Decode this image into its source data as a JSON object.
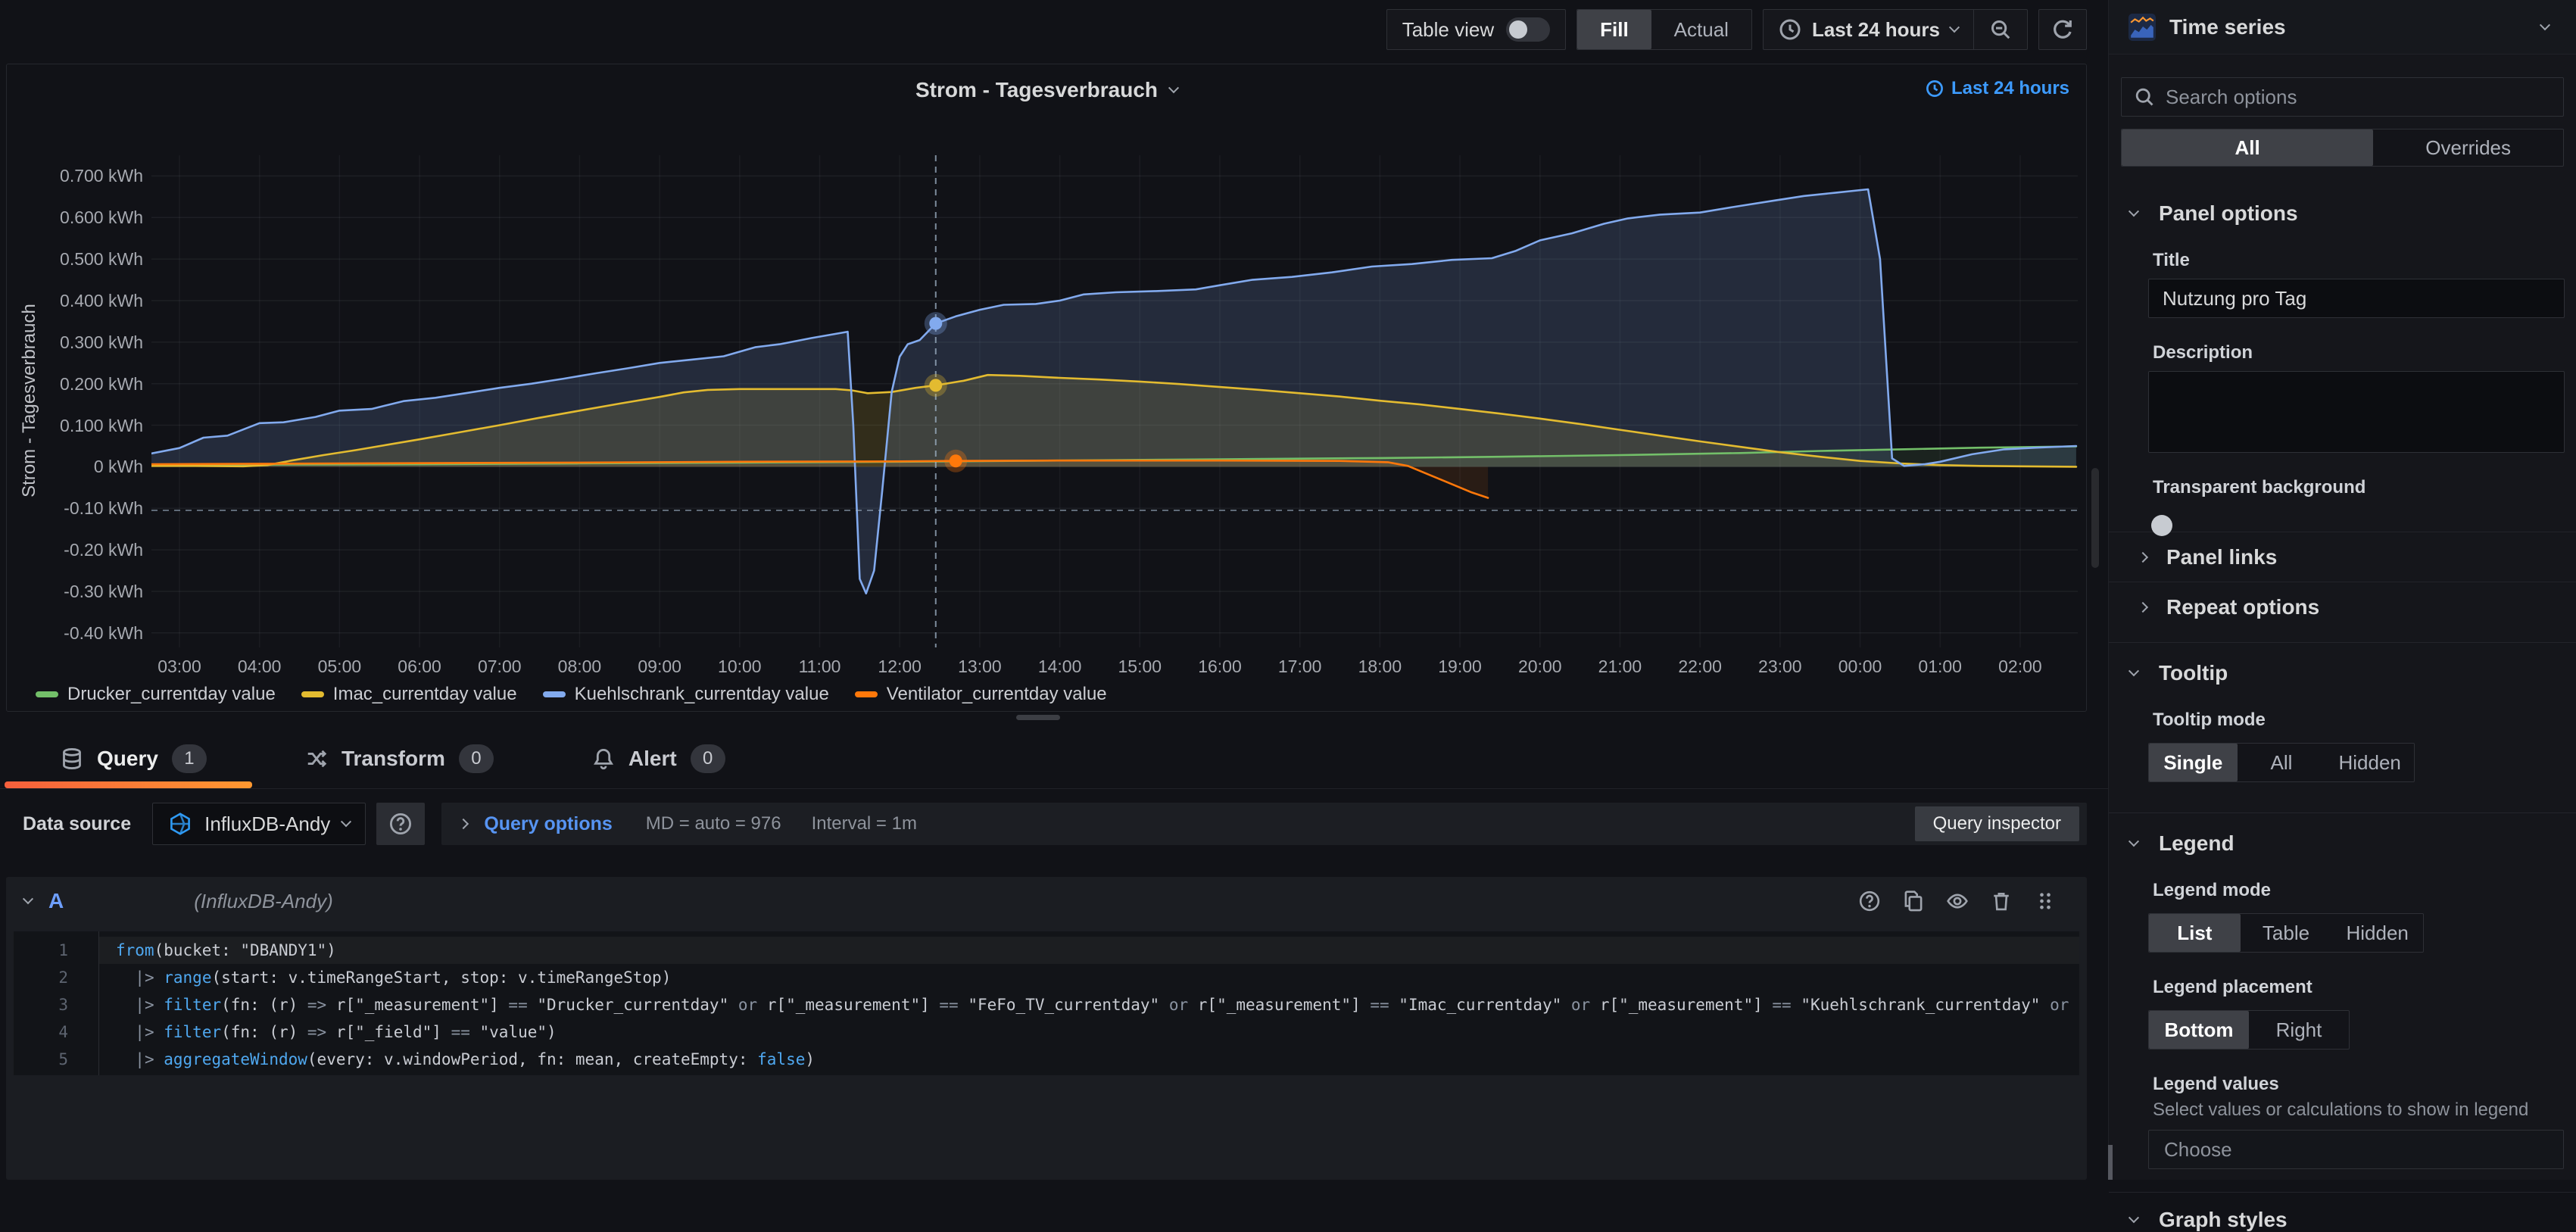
{
  "toolbar": {
    "table_view_label": "Table view",
    "view_options": [
      "Fill",
      "Actual"
    ],
    "active_view": "Fill",
    "time_range": "Last 24 hours",
    "icons": [
      "clock-icon",
      "chevron-down-icon",
      "zoom-out-icon",
      "refresh-icon"
    ]
  },
  "panel": {
    "title": "Strom - Tagesverbrauch",
    "time_indicator": "Last 24 hours"
  },
  "chart_data": {
    "type": "area",
    "title": "Strom - Tagesverbrauch",
    "ylabel": "Strom - Tagesverbrauch",
    "unit": "kWh",
    "grid": true,
    "legend_position": "bottom",
    "x_domain": [
      2.65,
      26.72
    ],
    "y_domain": [
      -0.435,
      0.75
    ],
    "y_ticks": [
      {
        "v": 0.7,
        "label": "0.700 kWh"
      },
      {
        "v": 0.6,
        "label": "0.600 kWh"
      },
      {
        "v": 0.5,
        "label": "0.500 kWh"
      },
      {
        "v": 0.4,
        "label": "0.400 kWh"
      },
      {
        "v": 0.3,
        "label": "0.300 kWh"
      },
      {
        "v": 0.2,
        "label": "0.200 kWh"
      },
      {
        "v": 0.1,
        "label": "0.100 kWh"
      },
      {
        "v": 0,
        "label": "0 kWh"
      },
      {
        "v": -0.1,
        "label": "-0.10 kWh"
      },
      {
        "v": -0.2,
        "label": "-0.20 kWh"
      },
      {
        "v": -0.3,
        "label": "-0.30 kWh"
      },
      {
        "v": -0.4,
        "label": "-0.40 kWh"
      }
    ],
    "x_ticks": [
      {
        "h": 3,
        "label": "03:00"
      },
      {
        "h": 4,
        "label": "04:00"
      },
      {
        "h": 5,
        "label": "05:00"
      },
      {
        "h": 6,
        "label": "06:00"
      },
      {
        "h": 7,
        "label": "07:00"
      },
      {
        "h": 8,
        "label": "08:00"
      },
      {
        "h": 9,
        "label": "09:00"
      },
      {
        "h": 10,
        "label": "10:00"
      },
      {
        "h": 11,
        "label": "11:00"
      },
      {
        "h": 12,
        "label": "12:00"
      },
      {
        "h": 13,
        "label": "13:00"
      },
      {
        "h": 14,
        "label": "14:00"
      },
      {
        "h": 15,
        "label": "15:00"
      },
      {
        "h": 16,
        "label": "16:00"
      },
      {
        "h": 17,
        "label": "17:00"
      },
      {
        "h": 18,
        "label": "18:00"
      },
      {
        "h": 19,
        "label": "19:00"
      },
      {
        "h": 20,
        "label": "20:00"
      },
      {
        "h": 21,
        "label": "21:00"
      },
      {
        "h": 22,
        "label": "22:00"
      },
      {
        "h": 23,
        "label": "23:00"
      },
      {
        "h": 24,
        "label": "00:00"
      },
      {
        "h": 25,
        "label": "01:00"
      },
      {
        "h": 26,
        "label": "02:00"
      }
    ],
    "series": [
      {
        "name": "Drucker_currentday value",
        "color": "#73bf69",
        "fill_opacity": 0.1,
        "points": [
          [
            2.65,
            0.004
          ],
          [
            4,
            0.005
          ],
          [
            6,
            0.006
          ],
          [
            8,
            0.008
          ],
          [
            10,
            0.01
          ],
          [
            12,
            0.012
          ],
          [
            14,
            0.015
          ],
          [
            16,
            0.018
          ],
          [
            18,
            0.021
          ],
          [
            19.5,
            0.024
          ],
          [
            21,
            0.028
          ],
          [
            22.5,
            0.033
          ],
          [
            23.5,
            0.038
          ],
          [
            24.5,
            0.042
          ],
          [
            25.5,
            0.046
          ],
          [
            26.7,
            0.049
          ]
        ]
      },
      {
        "name": "Imac_currentday value",
        "color": "#e3bb30",
        "fill_opacity": 0.16,
        "points": [
          [
            2.65,
            0.002
          ],
          [
            3.2,
            0.002
          ],
          [
            3.8,
            0.001
          ],
          [
            4.1,
            0.004
          ],
          [
            4.4,
            0.015
          ],
          [
            4.8,
            0.028
          ],
          [
            5.2,
            0.04
          ],
          [
            5.6,
            0.053
          ],
          [
            6,
            0.066
          ],
          [
            6.5,
            0.083
          ],
          [
            7,
            0.1
          ],
          [
            7.5,
            0.118
          ],
          [
            8,
            0.135
          ],
          [
            8.5,
            0.152
          ],
          [
            9,
            0.168
          ],
          [
            9.3,
            0.179
          ],
          [
            9.6,
            0.185
          ],
          [
            10,
            0.187
          ],
          [
            10.6,
            0.187
          ],
          [
            11.2,
            0.187
          ],
          [
            11.4,
            0.184
          ],
          [
            11.6,
            0.177
          ],
          [
            11.9,
            0.18
          ],
          [
            12.2,
            0.19
          ],
          [
            12.45,
            0.196
          ],
          [
            12.8,
            0.207
          ],
          [
            13.1,
            0.221
          ],
          [
            13.5,
            0.219
          ],
          [
            14,
            0.214
          ],
          [
            14.5,
            0.21
          ],
          [
            15,
            0.205
          ],
          [
            15.5,
            0.199
          ],
          [
            16,
            0.192
          ],
          [
            16.5,
            0.185
          ],
          [
            17,
            0.177
          ],
          [
            17.5,
            0.169
          ],
          [
            18,
            0.159
          ],
          [
            18.5,
            0.15
          ],
          [
            19,
            0.139
          ],
          [
            19.5,
            0.128
          ],
          [
            20,
            0.116
          ],
          [
            20.5,
            0.103
          ],
          [
            21,
            0.089
          ],
          [
            21.5,
            0.075
          ],
          [
            22,
            0.061
          ],
          [
            22.5,
            0.048
          ],
          [
            23,
            0.035
          ],
          [
            23.5,
            0.024
          ],
          [
            24,
            0.014
          ],
          [
            24.5,
            0.008
          ],
          [
            25,
            0.004
          ],
          [
            25.5,
            0.002
          ],
          [
            26,
            0.001
          ],
          [
            26.7,
            0.0
          ]
        ]
      },
      {
        "name": "Kuehlschrank_currentday value",
        "color": "#82aaee",
        "fill_opacity": 0.17,
        "points": [
          [
            2.65,
            0.032
          ],
          [
            3,
            0.045
          ],
          [
            3.3,
            0.07
          ],
          [
            3.6,
            0.075
          ],
          [
            4,
            0.105
          ],
          [
            4.3,
            0.107
          ],
          [
            4.7,
            0.12
          ],
          [
            5,
            0.135
          ],
          [
            5.4,
            0.139
          ],
          [
            5.8,
            0.158
          ],
          [
            6.2,
            0.166
          ],
          [
            6.6,
            0.178
          ],
          [
            7,
            0.19
          ],
          [
            7.4,
            0.2
          ],
          [
            7.8,
            0.212
          ],
          [
            8.2,
            0.225
          ],
          [
            8.6,
            0.237
          ],
          [
            9,
            0.25
          ],
          [
            9.4,
            0.258
          ],
          [
            9.8,
            0.266
          ],
          [
            10.2,
            0.288
          ],
          [
            10.5,
            0.295
          ],
          [
            10.9,
            0.31
          ],
          [
            11.2,
            0.32
          ],
          [
            11.35,
            0.325
          ],
          [
            11.42,
            0.1
          ],
          [
            11.5,
            -0.27
          ],
          [
            11.58,
            -0.305
          ],
          [
            11.68,
            -0.25
          ],
          [
            11.78,
            -0.06
          ],
          [
            11.9,
            0.18
          ],
          [
            12,
            0.265
          ],
          [
            12.1,
            0.295
          ],
          [
            12.25,
            0.305
          ],
          [
            12.45,
            0.345
          ],
          [
            12.7,
            0.362
          ],
          [
            13,
            0.378
          ],
          [
            13.3,
            0.39
          ],
          [
            13.7,
            0.392
          ],
          [
            14,
            0.4
          ],
          [
            14.3,
            0.415
          ],
          [
            14.7,
            0.42
          ],
          [
            15.2,
            0.423
          ],
          [
            15.7,
            0.427
          ],
          [
            16,
            0.437
          ],
          [
            16.4,
            0.45
          ],
          [
            16.9,
            0.457
          ],
          [
            17.4,
            0.468
          ],
          [
            17.9,
            0.482
          ],
          [
            18.4,
            0.488
          ],
          [
            18.9,
            0.498
          ],
          [
            19.4,
            0.502
          ],
          [
            19.7,
            0.52
          ],
          [
            20,
            0.545
          ],
          [
            20.4,
            0.562
          ],
          [
            20.8,
            0.585
          ],
          [
            21.1,
            0.598
          ],
          [
            21.5,
            0.607
          ],
          [
            22,
            0.612
          ],
          [
            22.4,
            0.625
          ],
          [
            22.9,
            0.64
          ],
          [
            23.3,
            0.652
          ],
          [
            23.7,
            0.66
          ],
          [
            24.1,
            0.668
          ],
          [
            24.25,
            0.5
          ],
          [
            24.4,
            0.02
          ],
          [
            24.55,
            0.002
          ],
          [
            24.8,
            0.006
          ],
          [
            25,
            0.012
          ],
          [
            25.4,
            0.03
          ],
          [
            25.8,
            0.042
          ],
          [
            26.2,
            0.046
          ],
          [
            26.7,
            0.05
          ]
        ]
      },
      {
        "name": "Ventilator_currentday value",
        "color": "#ff780a",
        "fill_opacity": 0.1,
        "points": [
          [
            2.65,
            0.006
          ],
          [
            5,
            0.008
          ],
          [
            8,
            0.01
          ],
          [
            10,
            0.012
          ],
          [
            12,
            0.013
          ],
          [
            12.7,
            0.014
          ],
          [
            14,
            0.015
          ],
          [
            16,
            0.015
          ],
          [
            17.5,
            0.014
          ],
          [
            18.1,
            0.011
          ],
          [
            18.35,
            0.002
          ],
          [
            18.6,
            -0.018
          ],
          [
            18.9,
            -0.042
          ],
          [
            19.15,
            -0.062
          ],
          [
            19.35,
            -0.075
          ]
        ]
      }
    ],
    "crosshair": {
      "x": 12.45,
      "y": -0.105
    },
    "hover_points": [
      {
        "series": 2,
        "x": 12.45,
        "y": 0.345
      },
      {
        "series": 1,
        "x": 12.45,
        "y": 0.196
      },
      {
        "series": 3,
        "x": 12.7,
        "y": 0.014
      }
    ]
  },
  "tabs": [
    {
      "label": "Query",
      "count": "1",
      "icon": "database-icon",
      "active": true
    },
    {
      "label": "Transform",
      "count": "0",
      "icon": "shuffle-icon",
      "active": false
    },
    {
      "label": "Alert",
      "count": "0",
      "icon": "bell-icon",
      "active": false
    }
  ],
  "datasource_row": {
    "label": "Data source",
    "datasource_name": "InfluxDB-Andy",
    "datasource_icon": "influxdb-logo-icon",
    "query_options_label": "Query options",
    "stats": "MD = auto = 976",
    "interval": "Interval = 1m",
    "inspector_label": "Query inspector"
  },
  "query": {
    "ref_id": "A",
    "datasource_hint": "(InfluxDB-Andy)",
    "action_icons": [
      "help-icon",
      "duplicate-icon",
      "hide-icon",
      "delete-icon",
      "drag-handle-icon"
    ],
    "code_lines": [
      "from(bucket: \"DBANDY1\")",
      "  |> range(start: v.timeRangeStart, stop: v.timeRangeStop)",
      "  |> filter(fn: (r) => r[\"_measurement\"] == \"Drucker_currentday\" or r[\"_measurement\"] == \"FeFo_TV_currentday\" or r[\"_measurement\"] == \"Imac_currentday\" or r[\"_measurement\"] == \"Kuehlschrank_currentday\" or r[\"_m",
      "  |> filter(fn: (r) => r[\"_field\"] == \"value\")",
      "  |> aggregateWindow(every: v.windowPeriod, fn: mean, createEmpty: false)"
    ]
  },
  "sidebar": {
    "viz_name": "Time series",
    "search_placeholder": "Search options",
    "filter_tabs": [
      "All",
      "Overrides"
    ],
    "active_filter_tab": "All",
    "panel_options": {
      "header": "Panel options",
      "title_label": "Title",
      "title_value": "Nutzung pro Tag",
      "description_label": "Description",
      "description_value": "",
      "transparent_label": "Transparent background"
    },
    "collapsed_sections": [
      "Panel links",
      "Repeat options"
    ],
    "tooltip": {
      "header": "Tooltip",
      "mode_label": "Tooltip mode",
      "modes": [
        "Single",
        "All",
        "Hidden"
      ],
      "active_mode": "Single"
    },
    "legend": {
      "header": "Legend",
      "mode_label": "Legend mode",
      "modes": [
        "List",
        "Table",
        "Hidden"
      ],
      "active_mode": "List",
      "placement_label": "Legend placement",
      "placements": [
        "Bottom",
        "Right"
      ],
      "active_placement": "Bottom",
      "values_label": "Legend values",
      "values_desc": "Select values or calculations to show in legend",
      "choose_placeholder": "Choose"
    },
    "next_section": "Graph styles"
  },
  "ui_colors": {
    "accent_blue": "#5794f2",
    "link_blue": "#3d9bff",
    "tab_underline_gradient": [
      "#f55f3c",
      "#ff9830"
    ]
  }
}
